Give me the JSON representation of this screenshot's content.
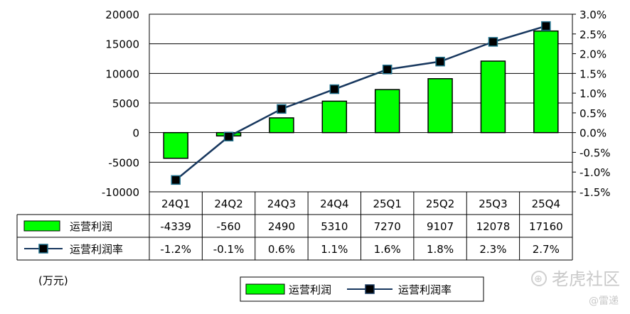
{
  "chart_data": {
    "type": "bar",
    "categories": [
      "24Q1",
      "24Q2",
      "24Q3",
      "24Q4",
      "25Q1",
      "25Q2",
      "25Q3",
      "25Q4"
    ],
    "series": [
      {
        "name": "运营利润",
        "type": "bar",
        "axis": "left",
        "values": [
          -4339,
          -560,
          2490,
          5310,
          7270,
          9107,
          12078,
          17160
        ],
        "labels": [
          "-4339",
          "-560",
          "2490",
          "5310",
          "7270",
          "9107",
          "12078",
          "17160"
        ],
        "color": "#00ff00"
      },
      {
        "name": "运营利润率",
        "type": "line",
        "axis": "right",
        "values": [
          -1.2,
          -0.1,
          0.6,
          1.1,
          1.6,
          1.8,
          2.3,
          2.7
        ],
        "labels": [
          "-1.2%",
          "-0.1%",
          "0.6%",
          "1.1%",
          "1.6%",
          "1.8%",
          "2.3%",
          "2.7%"
        ],
        "color": "#17375e"
      }
    ],
    "ylim_left": [
      -10000,
      20000
    ],
    "yticks_left": [
      20000,
      15000,
      10000,
      5000,
      0,
      -5000,
      -10000
    ],
    "ylim_right": [
      -1.5,
      3.0
    ],
    "yticks_right": [
      "3.0%",
      "2.5%",
      "2.0%",
      "1.5%",
      "1.0%",
      "0.5%",
      "0.0%",
      "-0.5%",
      "-1.0%",
      "-1.5%"
    ],
    "ylabel": "(万元)",
    "grid": "horizontal",
    "legend": "bottom",
    "data_table": true
  },
  "watermark": {
    "icon_glyph": "⊕",
    "text": "老虎社区",
    "author": "@雷递"
  }
}
